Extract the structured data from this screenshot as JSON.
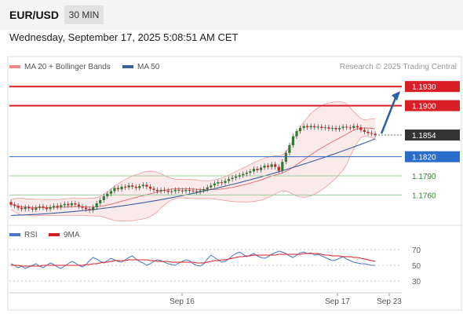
{
  "header": {
    "pair": "EUR/USD",
    "timeframe": "30 MIN"
  },
  "datetime": "Wednesday, September 17, 2025 5:08:51 AM CET",
  "legend_main": [
    {
      "name": "MA 20 + Bollinger Bands",
      "color": "#ef8a8a"
    },
    {
      "name": "MA 50",
      "color": "#3a5f9e"
    }
  ],
  "credit": "Research © 2025 Trading Central",
  "legend_rsi": [
    {
      "name": "RSI",
      "color": "#4a78c8"
    },
    {
      "name": "9MA",
      "color": "#d81f26"
    }
  ],
  "chart_data": [
    {
      "type": "candlestick",
      "title": "EUR/USD",
      "ylim": [
        1.1715,
        1.1945
      ],
      "price_levels": [
        {
          "label": "1.1930",
          "value": 1.193,
          "kind": "resistance",
          "color": "#d81f26"
        },
        {
          "label": "1.1900",
          "value": 1.19,
          "kind": "resistance",
          "color": "#d81f26"
        },
        {
          "label": "1.1854",
          "value": 1.1854,
          "kind": "current",
          "color": "#333333"
        },
        {
          "label": "1.1820",
          "value": 1.182,
          "kind": "pivot",
          "color": "#2a6dc9"
        },
        {
          "label": "1.1790",
          "value": 1.179,
          "kind": "support",
          "color": "#2e8b2e"
        },
        {
          "label": "1.1760",
          "value": 1.176,
          "kind": "support",
          "color": "#2e8b2e"
        }
      ],
      "close": [
        1.1745,
        1.1743,
        1.174,
        1.1738,
        1.1741,
        1.1739,
        1.1737,
        1.174,
        1.1742,
        1.174,
        1.1738,
        1.1741,
        1.1743,
        1.1741,
        1.1744,
        1.1746,
        1.1744,
        1.1747,
        1.1745,
        1.1742,
        1.174,
        1.1738,
        1.1736,
        1.1741,
        1.1747,
        1.1752,
        1.1758,
        1.1762,
        1.1766,
        1.1771,
        1.1769,
        1.1773,
        1.1772,
        1.1775,
        1.1773,
        1.1771,
        1.1774,
        1.1776,
        1.1773,
        1.177,
        1.1768,
        1.1766,
        1.1768,
        1.1767,
        1.1765,
        1.1766,
        1.1768,
        1.1767,
        1.1766,
        1.1768,
        1.1767,
        1.1766,
        1.1765,
        1.1767,
        1.1769,
        1.1772,
        1.1775,
        1.1778,
        1.178,
        1.1779,
        1.1782,
        1.1785,
        1.1787,
        1.1789,
        1.1791,
        1.1793,
        1.1795,
        1.1797,
        1.1801,
        1.1799,
        1.1803,
        1.1806,
        1.1804,
        1.1808,
        1.1804,
        1.1798,
        1.1812,
        1.1826,
        1.1838,
        1.1852,
        1.186,
        1.1865,
        1.1868,
        1.1866,
        1.1868,
        1.1866,
        1.1867,
        1.1865,
        1.1866,
        1.1864,
        1.1865,
        1.1863,
        1.1865,
        1.1867,
        1.1866,
        1.1865,
        1.1868,
        1.1866,
        1.1862,
        1.1859,
        1.1857,
        1.1856,
        1.1854
      ],
      "ma50_endpoints": [
        1.1728,
        1.1848
      ],
      "x_labels": [
        "Sep 16",
        "Sep 17",
        "Sep 23"
      ]
    },
    {
      "type": "line",
      "title": "RSI",
      "ylim": [
        20,
        80
      ],
      "yticks": [
        70,
        50,
        30
      ],
      "series": [
        {
          "name": "RSI",
          "values": [
            52,
            50,
            47,
            49,
            46,
            48,
            50,
            52,
            49,
            47,
            50,
            53,
            51,
            48,
            46,
            49,
            52,
            55,
            53,
            50,
            48,
            51,
            56,
            60,
            58,
            55,
            53,
            56,
            59,
            57,
            55,
            54,
            57,
            60,
            62,
            58,
            55,
            53,
            50,
            52,
            55,
            57,
            56,
            54,
            52,
            51,
            50,
            53,
            55,
            57,
            56,
            52,
            50,
            49,
            52,
            58,
            63,
            60,
            57,
            54,
            55,
            58,
            62,
            65,
            67,
            64,
            61,
            63,
            65,
            62,
            60,
            59,
            61,
            64,
            66,
            68,
            67,
            65,
            62,
            60,
            63,
            66,
            67,
            65,
            66,
            63,
            64,
            62,
            60,
            58,
            56,
            57,
            59,
            61,
            58,
            56,
            54,
            53,
            52,
            52,
            51,
            50,
            50
          ]
        },
        {
          "name": "9MA",
          "values": [
            50,
            50,
            50,
            49,
            49,
            49,
            49,
            49,
            49,
            50,
            50,
            50,
            50,
            50,
            50,
            50,
            50,
            50,
            50,
            50,
            50,
            51,
            51,
            52,
            52,
            53,
            54,
            54,
            55,
            56,
            56,
            56,
            56,
            57,
            57,
            57,
            57,
            57,
            57,
            56,
            56,
            55,
            55,
            55,
            55,
            54,
            54,
            54,
            54,
            54,
            54,
            54,
            53,
            53,
            53,
            54,
            55,
            56,
            56,
            57,
            57,
            58,
            59,
            60,
            61,
            61,
            62,
            62,
            63,
            63,
            63,
            63,
            63,
            63,
            63,
            64,
            64,
            64,
            64,
            64,
            64,
            64,
            65,
            65,
            65,
            65,
            65,
            64,
            63,
            63,
            62,
            62,
            62,
            61,
            61,
            61,
            60,
            60,
            59,
            58,
            57,
            56,
            55
          ]
        }
      ]
    }
  ]
}
